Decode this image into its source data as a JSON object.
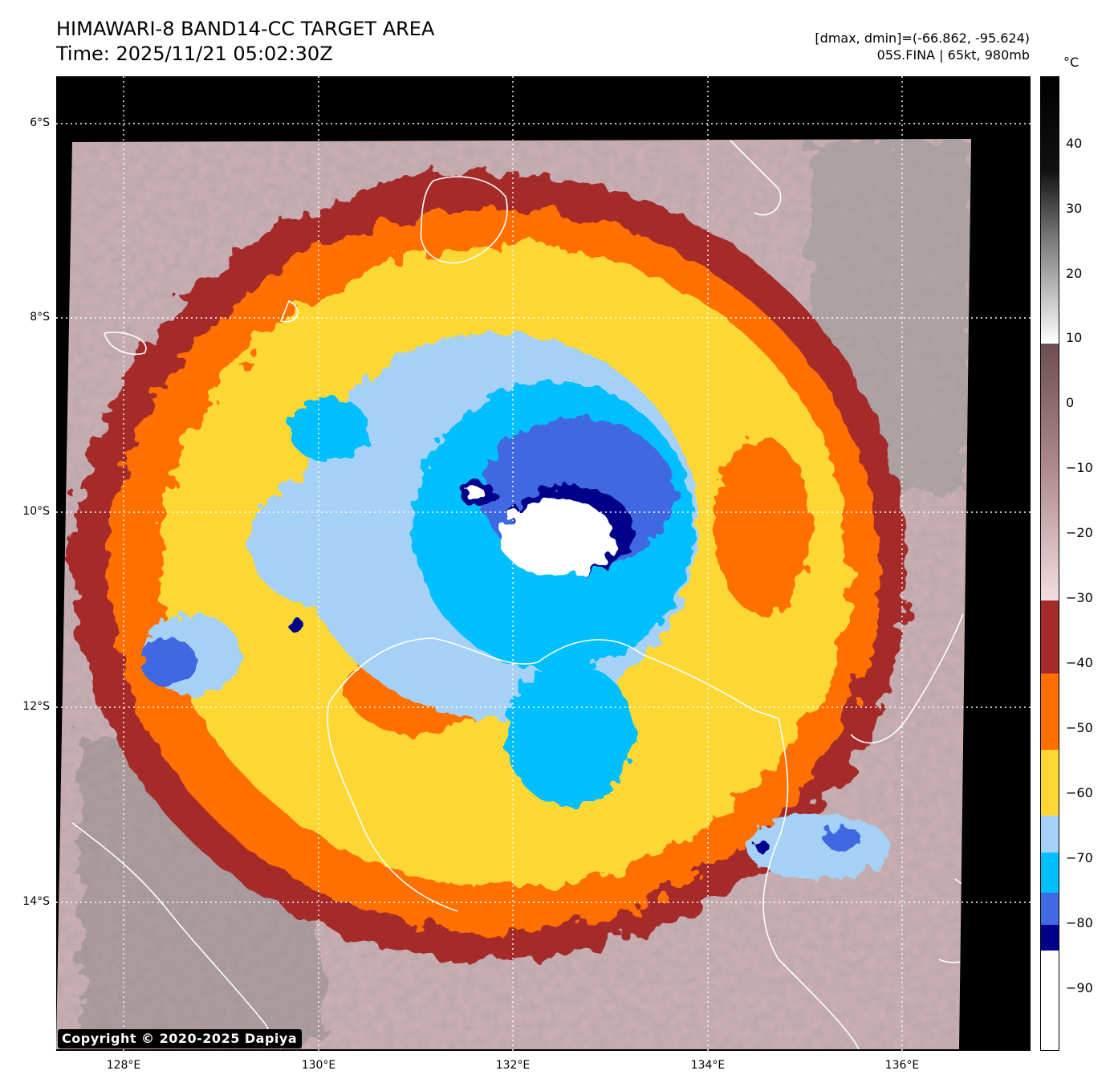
{
  "title": {
    "line1": "HIMAWARI-8 BAND14-CC TARGET AREA",
    "line2": "Time: 2025/11/21 05:02:30Z"
  },
  "meta": {
    "range": "[dmax, dmin]=(-66.862, -95.624)",
    "storm": "05S.FINA | 65kt, 980mb"
  },
  "axes": {
    "lat_labels": [
      "6°S",
      "8°S",
      "10°S",
      "12°S",
      "14°S"
    ],
    "lon_labels": [
      "128°E",
      "130°E",
      "132°E",
      "134°E",
      "136°E"
    ]
  },
  "colorbar": {
    "unit": "°C",
    "ticks": [
      "40",
      "30",
      "20",
      "10",
      "0",
      "−10",
      "−20",
      "−30",
      "−40",
      "−50",
      "−60",
      "−70",
      "−80",
      "−90"
    ],
    "colors": {
      "c_-90": "#ffffff",
      "c_-85": "#00008b",
      "c_-80": "#4169e1",
      "c_-75": "#00bfff",
      "c_-70": "#a6d1f6",
      "c_-60": "#fdd835",
      "c_-50": "#ff6f00",
      "c_-40": "#a52a2a",
      "c_-30": "#f3dde0",
      "c_10": "#ffffff",
      "c_50": "#000000"
    }
  },
  "copyright": "Copyright © 2020-2025 Dapiya"
}
